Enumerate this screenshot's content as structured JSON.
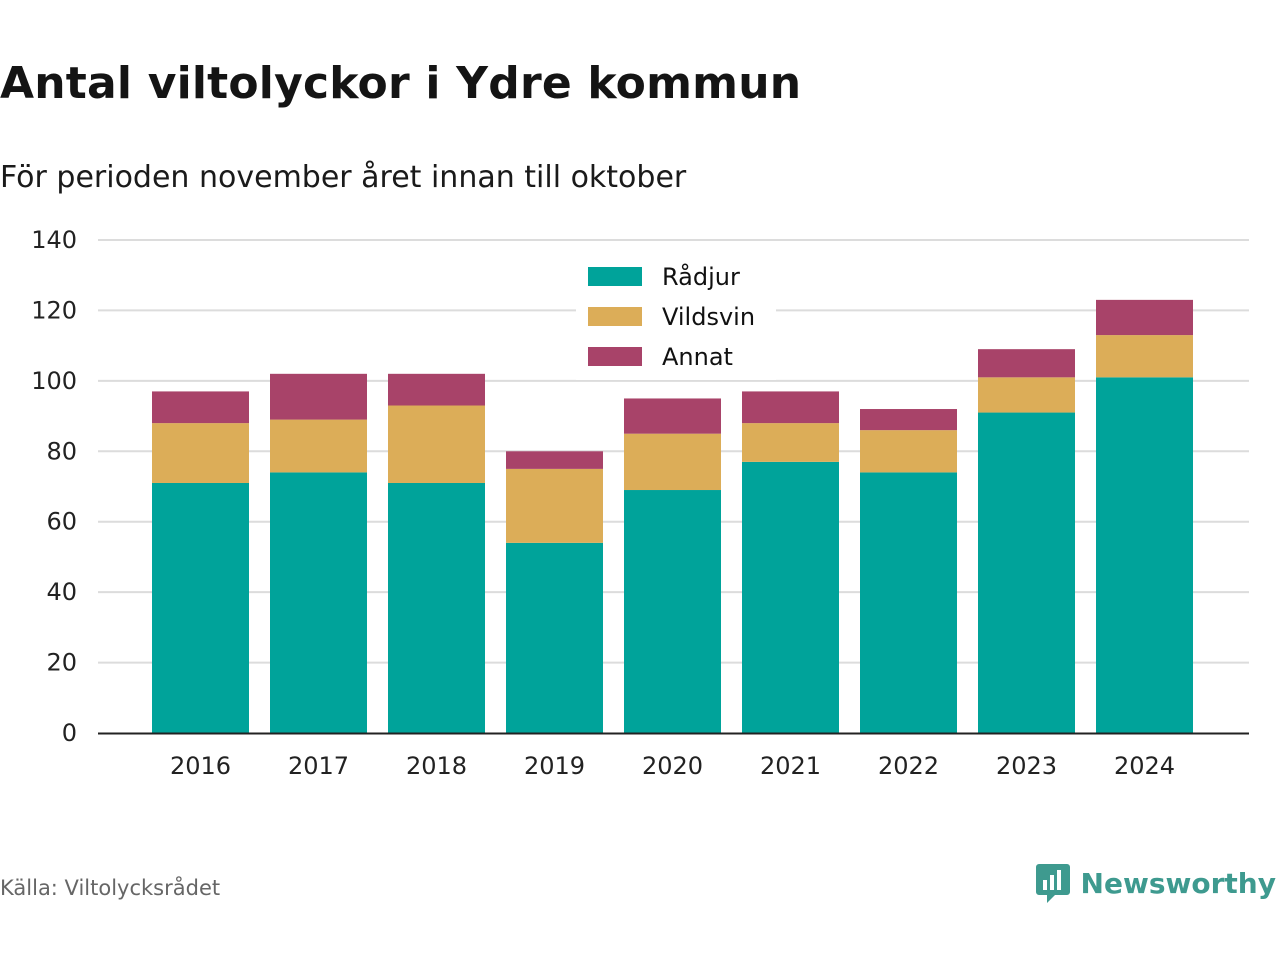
{
  "title": "Antal viltolyckor i Ydre kommun",
  "subtitle": "För perioden november året innan till oktober",
  "source": "Källa: Viltolycksrådet",
  "brand": {
    "name": "Newsworthy",
    "icon": "newsworthy-logo-icon",
    "color": "#3e9a8f"
  },
  "chart_data": {
    "type": "bar",
    "stacked": true,
    "categories": [
      "2016",
      "2017",
      "2018",
      "2019",
      "2020",
      "2021",
      "2022",
      "2023",
      "2024"
    ],
    "series": [
      {
        "name": "Rådjur",
        "color": "#00a39a",
        "values": [
          71,
          74,
          71,
          54,
          69,
          77,
          74,
          91,
          101
        ]
      },
      {
        "name": "Vildsvin",
        "color": "#dcad58",
        "values": [
          17,
          15,
          22,
          21,
          16,
          11,
          12,
          10,
          12
        ]
      },
      {
        "name": "Annat",
        "color": "#a84369",
        "values": [
          9,
          13,
          9,
          5,
          10,
          9,
          6,
          8,
          10
        ]
      }
    ],
    "ylim": [
      0,
      140
    ],
    "yticks": [
      0,
      20,
      40,
      60,
      80,
      100,
      120,
      140
    ],
    "grid": true,
    "legend_position": "top-center",
    "xlabel": "",
    "ylabel": ""
  }
}
